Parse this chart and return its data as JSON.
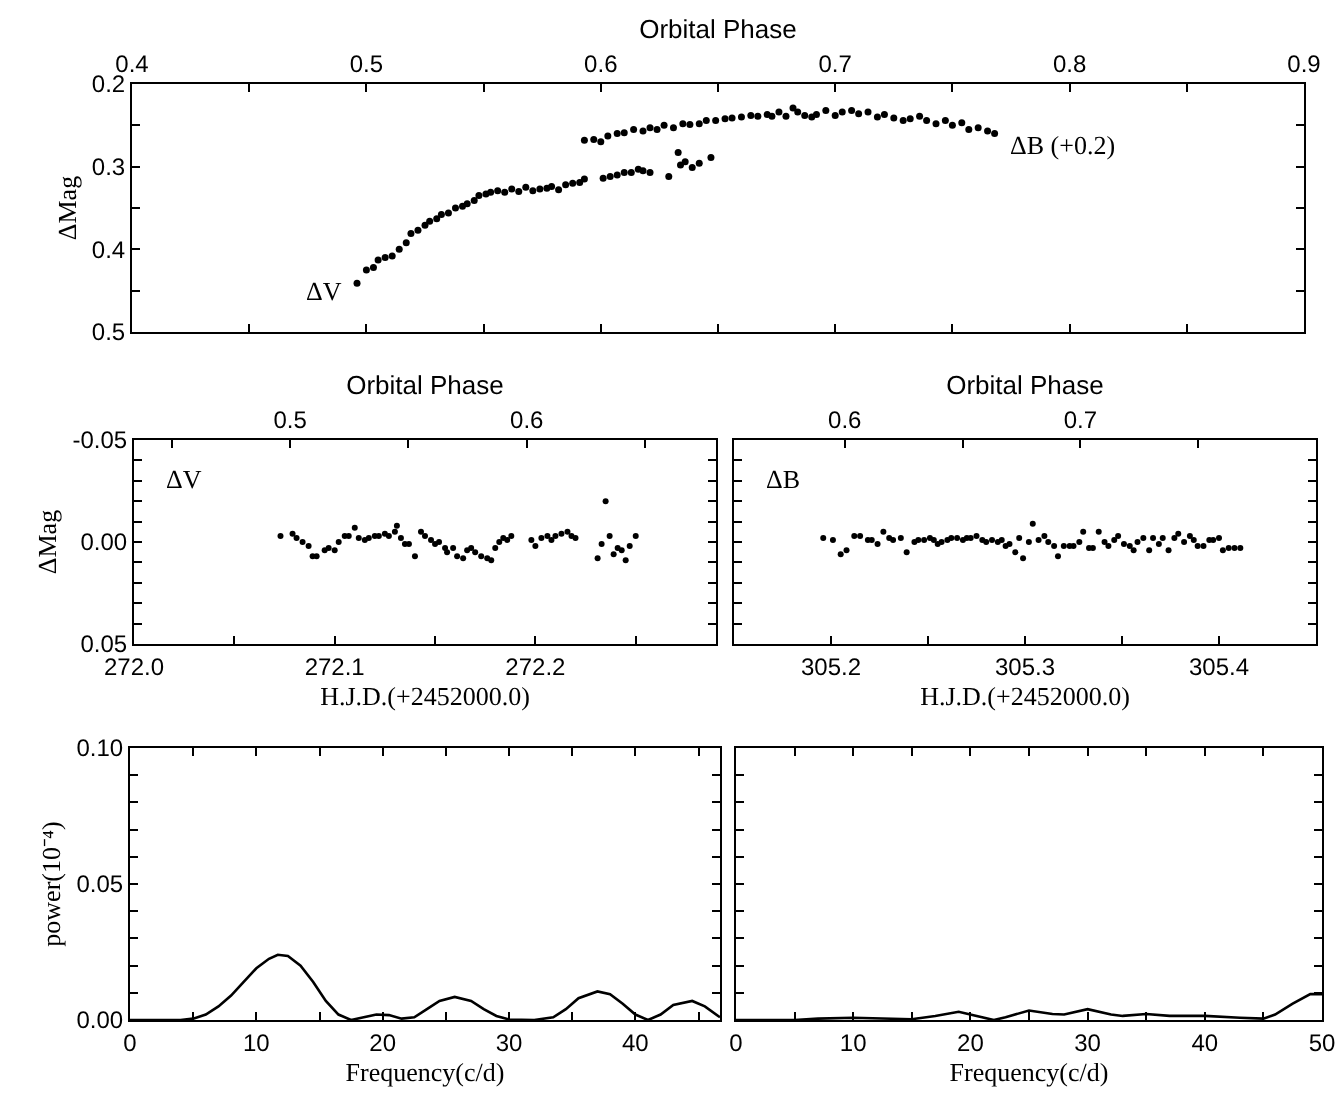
{
  "chart_data": [
    {
      "type": "scatter",
      "xlabel": "Orbital Phase",
      "ylabel": "ΔMag",
      "marker": "circle",
      "grid": false,
      "xlim": [
        0.4,
        0.9
      ],
      "xticks": [
        0.4,
        0.5,
        0.6,
        0.7,
        0.8,
        0.9,
        {
          "value": 0.45,
          "label": null
        },
        {
          "value": 0.55,
          "label": null
        },
        {
          "value": 0.65,
          "label": null
        },
        {
          "value": 0.75,
          "label": null
        },
        {
          "value": 0.85,
          "label": null
        }
      ],
      "ylim": [
        0.5,
        0.2
      ],
      "yticks": [
        0.2,
        0.3,
        0.4,
        0.5,
        {
          "value": 0.25,
          "label": null
        },
        {
          "value": 0.35,
          "label": null
        },
        {
          "value": 0.45,
          "label": null
        }
      ],
      "series": [
        {
          "name": "ΔV",
          "color": "#000000",
          "x": [
            0.496,
            0.5,
            0.503,
            0.505,
            0.508,
            0.511,
            0.514,
            0.517,
            0.519,
            0.522,
            0.525,
            0.527,
            0.53,
            0.532,
            0.535,
            0.538,
            0.541,
            0.543,
            0.546,
            0.548,
            0.551,
            0.553,
            0.556,
            0.559,
            0.562,
            0.565,
            0.568,
            0.571,
            0.574,
            0.577,
            0.579,
            0.582,
            0.585,
            0.588,
            0.591,
            0.593,
            0.601,
            0.604,
            0.607,
            0.61,
            0.613,
            0.616,
            0.618,
            0.621,
            0.629,
            0.633,
            0.634,
            0.636,
            0.639,
            0.642,
            0.647
          ],
          "values": [
            0.441,
            0.425,
            0.422,
            0.413,
            0.41,
            0.408,
            0.4,
            0.392,
            0.381,
            0.377,
            0.371,
            0.366,
            0.363,
            0.358,
            0.356,
            0.35,
            0.348,
            0.345,
            0.341,
            0.335,
            0.333,
            0.331,
            0.329,
            0.331,
            0.327,
            0.33,
            0.325,
            0.329,
            0.327,
            0.326,
            0.324,
            0.328,
            0.322,
            0.32,
            0.319,
            0.315,
            0.314,
            0.312,
            0.31,
            0.307,
            0.307,
            0.303,
            0.305,
            0.307,
            0.312,
            0.283,
            0.298,
            0.294,
            0.301,
            0.296,
            0.289
          ]
        },
        {
          "name": "ΔB (+0.2)",
          "color": "#000000",
          "x": [
            0.593,
            0.597,
            0.6,
            0.603,
            0.607,
            0.61,
            0.614,
            0.618,
            0.621,
            0.624,
            0.627,
            0.631,
            0.635,
            0.638,
            0.642,
            0.645,
            0.649,
            0.653,
            0.656,
            0.66,
            0.664,
            0.667,
            0.671,
            0.673,
            0.676,
            0.679,
            0.682,
            0.684,
            0.687,
            0.69,
            0.692,
            0.696,
            0.7,
            0.703,
            0.707,
            0.71,
            0.714,
            0.718,
            0.721,
            0.725,
            0.729,
            0.732,
            0.736,
            0.739,
            0.743,
            0.747,
            0.75,
            0.754,
            0.757,
            0.761,
            0.765,
            0.768
          ],
          "values": [
            0.268,
            0.267,
            0.27,
            0.263,
            0.26,
            0.259,
            0.255,
            0.257,
            0.253,
            0.255,
            0.25,
            0.253,
            0.248,
            0.249,
            0.248,
            0.244,
            0.244,
            0.242,
            0.241,
            0.24,
            0.238,
            0.239,
            0.237,
            0.239,
            0.234,
            0.239,
            0.229,
            0.234,
            0.238,
            0.24,
            0.237,
            0.232,
            0.238,
            0.234,
            0.232,
            0.236,
            0.234,
            0.24,
            0.237,
            0.241,
            0.244,
            0.242,
            0.239,
            0.244,
            0.248,
            0.244,
            0.25,
            0.247,
            0.255,
            0.253,
            0.257,
            0.26
          ]
        }
      ]
    },
    {
      "type": "scatter",
      "x2label": "Orbital Phase",
      "xlabel": "H.J.D.(+2452000.0)",
      "ylabel": "ΔMag",
      "marker": "circle",
      "grid": false,
      "annotations": [
        "ΔV"
      ],
      "x2lim": [
        0.434,
        0.68
      ],
      "x2ticks": [
        {
          "value": 0.45,
          "label": null
        },
        0.5,
        {
          "value": 0.55,
          "label": null
        },
        0.6,
        {
          "value": 0.65,
          "label": null
        }
      ],
      "xlim": [
        272.0,
        272.29
      ],
      "xticks": [
        {
          "value": 272.0,
          "label": "272.0"
        },
        272.1,
        272.2,
        {
          "value": 272.05,
          "label": null
        },
        {
          "value": 272.15,
          "label": null
        },
        {
          "value": 272.25,
          "label": null
        }
      ],
      "ylim": [
        0.05,
        -0.05
      ],
      "yticks": [
        -0.05,
        {
          "value": 0,
          "label": "0.00"
        },
        0.05,
        {
          "value": -0.04,
          "label": null
        },
        {
          "value": -0.03,
          "label": null
        },
        {
          "value": -0.02,
          "label": null
        },
        {
          "value": -0.01,
          "label": null
        },
        {
          "value": 0.01,
          "label": null
        },
        {
          "value": 0.02,
          "label": null
        },
        {
          "value": 0.03,
          "label": null
        },
        {
          "value": 0.04,
          "label": null
        }
      ],
      "series": [
        {
          "color": "#000000",
          "x": [
            272.073,
            272.079,
            272.081,
            272.084,
            272.087,
            272.089,
            272.091,
            272.095,
            272.097,
            272.1,
            272.102,
            272.105,
            272.107,
            272.11,
            272.112,
            272.115,
            272.117,
            272.12,
            272.122,
            272.125,
            272.127,
            272.13,
            272.131,
            272.133,
            272.135,
            272.137,
            272.14,
            272.143,
            272.145,
            272.148,
            272.15,
            272.152,
            272.155,
            272.156,
            272.159,
            272.161,
            272.164,
            272.166,
            272.168,
            272.17,
            272.173,
            272.176,
            272.178,
            272.18,
            272.182,
            272.184,
            272.186,
            272.188,
            272.198,
            272.2,
            272.203,
            272.206,
            272.208,
            272.21,
            272.213,
            272.216,
            272.218,
            272.22,
            272.231,
            272.233,
            272.235,
            272.237,
            272.239,
            272.241,
            272.243,
            272.245,
            272.247,
            272.25
          ],
          "values": [
            -0.003,
            -0.004,
            -0.002,
            0.0,
            0.002,
            0.007,
            0.007,
            0.004,
            0.003,
            0.004,
            0.0,
            -0.003,
            -0.003,
            -0.007,
            -0.002,
            -0.001,
            -0.002,
            -0.003,
            -0.003,
            -0.004,
            -0.003,
            -0.005,
            -0.008,
            -0.002,
            0.001,
            0.001,
            0.007,
            -0.005,
            -0.003,
            -0.001,
            0.001,
            0.0,
            0.003,
            0.005,
            0.003,
            0.007,
            0.008,
            0.004,
            0.003,
            0.005,
            0.007,
            0.008,
            0.009,
            0.003,
            0.0,
            -0.002,
            -0.001,
            -0.003,
            -0.001,
            0.002,
            -0.002,
            -0.003,
            -0.001,
            -0.003,
            -0.004,
            -0.005,
            -0.003,
            -0.002,
            0.008,
            0.001,
            -0.02,
            -0.003,
            0.006,
            0.003,
            0.004,
            0.009,
            0.002,
            -0.003
          ]
        }
      ]
    },
    {
      "type": "scatter",
      "x2label": "Orbital Phase",
      "xlabel": "H.J.D.(+2452000.0)",
      "marker": "circle",
      "grid": false,
      "annotations": [
        "ΔB"
      ],
      "tick_labels": "x",
      "x2lim": [
        0.553,
        0.8
      ],
      "x2ticks": [
        0.6,
        {
          "value": 0.65,
          "label": null
        },
        0.7,
        {
          "value": 0.75,
          "label": null
        }
      ],
      "xlim": [
        305.15,
        305.45
      ],
      "xticks": [
        305.2,
        305.3,
        305.4,
        {
          "value": 305.25,
          "label": null
        },
        {
          "value": 305.35,
          "label": null
        }
      ],
      "ylim": [
        0.05,
        -0.05
      ],
      "yticks": [
        {
          "value": -0.05,
          "label": null
        },
        {
          "value": 0,
          "label": null
        },
        {
          "value": 0.05,
          "label": null
        },
        {
          "value": -0.04,
          "label": null
        },
        {
          "value": -0.03,
          "label": null
        },
        {
          "value": -0.02,
          "label": null
        },
        {
          "value": -0.01,
          "label": null
        },
        {
          "value": 0.01,
          "label": null
        },
        {
          "value": 0.02,
          "label": null
        },
        {
          "value": 0.03,
          "label": null
        },
        {
          "value": 0.04,
          "label": null
        }
      ],
      "series": [
        {
          "color": "#000000",
          "x": [
            305.196,
            305.201,
            305.205,
            305.208,
            305.212,
            305.215,
            305.219,
            305.221,
            305.224,
            305.227,
            305.23,
            305.232,
            305.236,
            305.239,
            305.243,
            305.245,
            305.248,
            305.251,
            305.253,
            305.255,
            305.257,
            305.26,
            305.262,
            305.265,
            305.268,
            305.27,
            305.272,
            305.275,
            305.278,
            305.28,
            305.283,
            305.286,
            305.288,
            305.29,
            305.292,
            305.295,
            305.297,
            305.299,
            305.302,
            305.304,
            305.307,
            305.31,
            305.312,
            305.315,
            305.317,
            305.32,
            305.323,
            305.325,
            305.328,
            305.33,
            305.333,
            305.335,
            305.338,
            305.341,
            305.343,
            305.346,
            305.348,
            305.351,
            305.354,
            305.356,
            305.358,
            305.361,
            305.364,
            305.366,
            305.369,
            305.371,
            305.374,
            305.377,
            305.379,
            305.382,
            305.385,
            305.387,
            305.389,
            305.392,
            305.395,
            305.397,
            305.4,
            305.402,
            305.405,
            305.408,
            305.411
          ],
          "values": [
            -0.002,
            -0.001,
            0.006,
            0.004,
            -0.003,
            -0.003,
            -0.001,
            -0.001,
            0.001,
            -0.005,
            -0.002,
            -0.001,
            -0.002,
            0.005,
            0.0,
            -0.001,
            -0.001,
            -0.002,
            -0.001,
            0.001,
            0.0,
            -0.001,
            -0.002,
            -0.002,
            -0.001,
            -0.002,
            -0.002,
            -0.003,
            -0.001,
            0.0,
            -0.001,
            0.0,
            -0.001,
            0.002,
            0.001,
            0.005,
            -0.002,
            0.008,
            0.0,
            -0.009,
            -0.001,
            -0.003,
            0.0,
            0.002,
            0.007,
            0.002,
            0.002,
            0.002,
            0.0,
            -0.005,
            0.003,
            0.003,
            -0.005,
            0.0,
            0.002,
            -0.001,
            -0.003,
            0.001,
            0.002,
            0.004,
            0.0,
            -0.002,
            0.004,
            -0.002,
            0.001,
            -0.002,
            0.004,
            -0.002,
            -0.004,
            0.0,
            -0.003,
            -0.001,
            0.002,
            0.002,
            -0.001,
            -0.001,
            -0.002,
            0.004,
            0.003,
            0.003,
            0.003
          ]
        }
      ]
    },
    {
      "type": "line",
      "xlabel": "Frequency(c/d)",
      "ylabel": "power(10⁻⁴)",
      "marker": "none",
      "line_style": "solid",
      "grid": false,
      "xlim": [
        0,
        46.7
      ],
      "xticks": [
        0,
        10,
        20,
        30,
        40,
        {
          "value": 5,
          "label": null
        },
        {
          "value": 15,
          "label": null
        },
        {
          "value": 25,
          "label": null
        },
        {
          "value": 35,
          "label": null
        },
        {
          "value": 45,
          "label": null
        }
      ],
      "ylim": [
        0,
        0.1
      ],
      "yticks": [
        {
          "value": 0,
          "label": "0.00"
        },
        0.05,
        {
          "value": 0.1,
          "label": "0.10"
        },
        {
          "value": 0.01,
          "label": null
        },
        {
          "value": 0.02,
          "label": null
        },
        {
          "value": 0.03,
          "label": null
        },
        {
          "value": 0.04,
          "label": null
        },
        {
          "value": 0.06,
          "label": null
        },
        {
          "value": 0.07,
          "label": null
        },
        {
          "value": 0.08,
          "label": null
        },
        {
          "value": 0.09,
          "label": null
        }
      ],
      "series": [
        {
          "color": "#000000",
          "x": [
            0,
            4,
            5,
            6,
            7,
            8,
            9,
            10,
            11,
            11.7,
            12.5,
            13.5,
            14.5,
            15.5,
            16.5,
            17.5,
            18.5,
            19.5,
            20.5,
            21.5,
            22.5,
            23.5,
            24.5,
            25.7,
            27,
            28,
            29,
            30,
            32,
            33.5,
            34.5,
            35.5,
            37,
            38,
            39,
            40,
            41,
            42,
            43,
            44.5,
            45.5,
            46.7
          ],
          "values": [
            0,
            0,
            0.0005,
            0.002,
            0.005,
            0.009,
            0.014,
            0.019,
            0.0225,
            0.024,
            0.0235,
            0.02,
            0.014,
            0.007,
            0.002,
            0,
            0.001,
            0.002,
            0.0018,
            0.0005,
            0.001,
            0.004,
            0.007,
            0.0085,
            0.007,
            0.004,
            0.0015,
            0.0002,
            0,
            0.001,
            0.004,
            0.008,
            0.0105,
            0.0095,
            0.006,
            0.002,
            0,
            0.002,
            0.0055,
            0.007,
            0.005,
            0.001
          ]
        }
      ]
    },
    {
      "type": "line",
      "xlabel": "Frequency(c/d)",
      "marker": "none",
      "line_style": "solid",
      "grid": false,
      "tick_labels": "x",
      "xlim": [
        0,
        50
      ],
      "xticks": [
        0,
        10,
        20,
        30,
        40,
        50,
        {
          "value": 5,
          "label": null
        },
        {
          "value": 15,
          "label": null
        },
        {
          "value": 25,
          "label": null
        },
        {
          "value": 35,
          "label": null
        },
        {
          "value": 45,
          "label": null
        }
      ],
      "ylim": [
        0,
        0.1
      ],
      "yticks": [
        {
          "value": 0,
          "label": null
        },
        {
          "value": 0.05,
          "label": null
        },
        {
          "value": 0.1,
          "label": null
        },
        {
          "value": 0.01,
          "label": null
        },
        {
          "value": 0.02,
          "label": null
        },
        {
          "value": 0.03,
          "label": null
        },
        {
          "value": 0.04,
          "label": null
        },
        {
          "value": 0.06,
          "label": null
        },
        {
          "value": 0.07,
          "label": null
        },
        {
          "value": 0.08,
          "label": null
        },
        {
          "value": 0.09,
          "label": null
        }
      ],
      "series": [
        {
          "color": "#000000",
          "x": [
            0,
            5,
            7,
            10,
            15,
            17,
            19,
            21,
            22,
            23,
            25,
            27,
            28,
            30,
            32,
            33,
            35,
            37,
            40,
            43,
            45,
            46,
            47.5,
            49,
            50
          ],
          "values": [
            0,
            0,
            0.0005,
            0.0008,
            0.0003,
            0.0015,
            0.003,
            0.001,
            0,
            0.001,
            0.0035,
            0.0022,
            0.002,
            0.004,
            0.002,
            0.0015,
            0.0022,
            0.0015,
            0.0015,
            0.0008,
            0.0005,
            0.002,
            0.006,
            0.0095,
            0.0095
          ]
        }
      ]
    }
  ]
}
